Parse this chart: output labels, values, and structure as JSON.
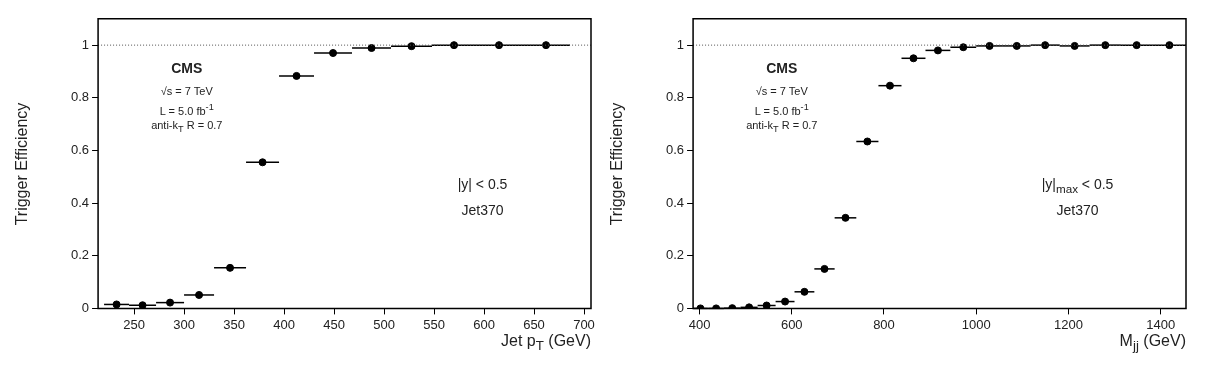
{
  "chart_data": [
    {
      "type": "scatter",
      "xlabel": "Jet p$_{T}$ (GeV)",
      "ylabel": "Trigger Efficiency",
      "marker": "circle",
      "x": [
        232.5,
        258.5,
        286,
        315,
        346,
        378.5,
        412.5,
        449,
        487.5,
        527.5,
        570,
        615,
        662
      ],
      "series": [
        {
          "color": "#000000",
          "values": [
            0.015,
            0.012,
            0.022,
            0.051,
            0.154,
            0.555,
            0.883,
            0.97,
            0.989,
            0.996,
            1.0,
            1.0,
            1.0
          ],
          "xerrors": [
            12.5,
            13.5,
            14,
            15,
            16,
            16.5,
            17.5,
            19,
            19.5,
            20.5,
            22,
            23,
            24
          ]
        }
      ],
      "xlim": [
        214,
        707
      ],
      "ylim": [
        0,
        1.1
      ],
      "xticks": [
        250,
        300,
        350,
        400,
        450,
        500,
        550,
        600,
        650,
        700
      ],
      "yticks": [
        0,
        0.2,
        0.4,
        0.6,
        0.8,
        1
      ],
      "ref_lines": [
        {
          "axis": "y",
          "value": 1,
          "line_style": "dotted",
          "color": "#555555"
        }
      ],
      "annotations": [
        "CMS",
        "√s = 7 TeV",
        "L = 5.0 fb$^{-1}$",
        "anti-k$_{T}$ R = 0.7",
        "|y| < 0.5",
        "Jet370"
      ]
    },
    {
      "type": "scatter",
      "xlabel": "M$_{jj}$ (GeV)",
      "ylabel": "Trigger Efficiency",
      "marker": "circle",
      "x": [
        402,
        436,
        471,
        507.5,
        545.5,
        585.5,
        627.5,
        671,
        716.5,
        764,
        813,
        864,
        917,
        972,
        1029,
        1088,
        1149.5,
        1213.5,
        1280,
        1348,
        1419
      ],
      "series": [
        {
          "color": "#000000",
          "values": [
            0.0,
            0.0,
            0.001,
            0.004,
            0.011,
            0.026,
            0.063,
            0.15,
            0.344,
            0.634,
            0.846,
            0.95,
            0.98,
            0.992,
            0.997,
            0.997,
            1.0,
            0.997,
            1.0,
            1.0,
            1.0
          ],
          "xerrors": [
            16,
            17,
            18,
            18.5,
            19.5,
            20.5,
            21.5,
            22,
            23.5,
            24,
            25,
            26,
            27,
            28,
            29,
            30,
            31.5,
            32.5,
            33.5,
            35,
            36
          ]
        }
      ],
      "xlim": [
        386,
        1455
      ],
      "ylim": [
        0,
        1.1
      ],
      "xticks": [
        400,
        600,
        800,
        1000,
        1200,
        1400
      ],
      "yticks": [
        0,
        0.2,
        0.4,
        0.6,
        0.8,
        1
      ],
      "ref_lines": [
        {
          "axis": "y",
          "value": 1,
          "line_style": "dotted",
          "color": "#555555"
        }
      ],
      "annotations": [
        "CMS",
        "√s = 7 TeV",
        "L = 5.0 fb$^{-1}$",
        "anti-k$_{T}$ R = 0.7",
        "|y|$_{max}$ < 0.5",
        "Jet370"
      ]
    }
  ]
}
